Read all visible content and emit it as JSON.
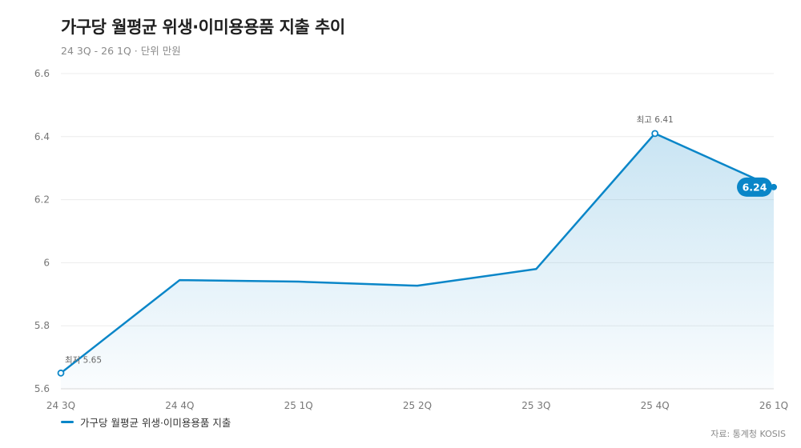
{
  "chart_data": {
    "type": "area",
    "title": "가구당 월평균 위생·이미용용품 지출 추이",
    "subtitle": "24 3Q - 26 1Q · 단위 만원",
    "categories": [
      "24 3Q",
      "24 4Q",
      "25 1Q",
      "25 2Q",
      "25 3Q",
      "25 4Q",
      "26 1Q"
    ],
    "series": [
      {
        "name": "가구당 월평균 위생·이미용용품 지출",
        "values": [
          5.65,
          5.945,
          5.94,
          5.927,
          5.98,
          6.41,
          6.24
        ]
      }
    ],
    "ylim": [
      5.6,
      6.6
    ],
    "yticks": [
      5.6,
      5.8,
      6,
      6.2,
      6.4,
      6.6
    ],
    "ytick_labels": [
      "5.6",
      "5.8",
      "6",
      "6.2",
      "6.4",
      "6.6"
    ],
    "annotations": {
      "max": {
        "index": 5,
        "label": "최고 6.41"
      },
      "min": {
        "index": 0,
        "label": "최저 5.65"
      },
      "last": {
        "index": 6,
        "label": "6.24"
      }
    },
    "grid": true,
    "legend_position": "bottom-left",
    "source": "자료: 통계청 KOSIS",
    "colors": {
      "line": "#0a86c8",
      "fill": "#0a86c8",
      "grid": "#ececec",
      "axis_text": "#777777"
    }
  }
}
